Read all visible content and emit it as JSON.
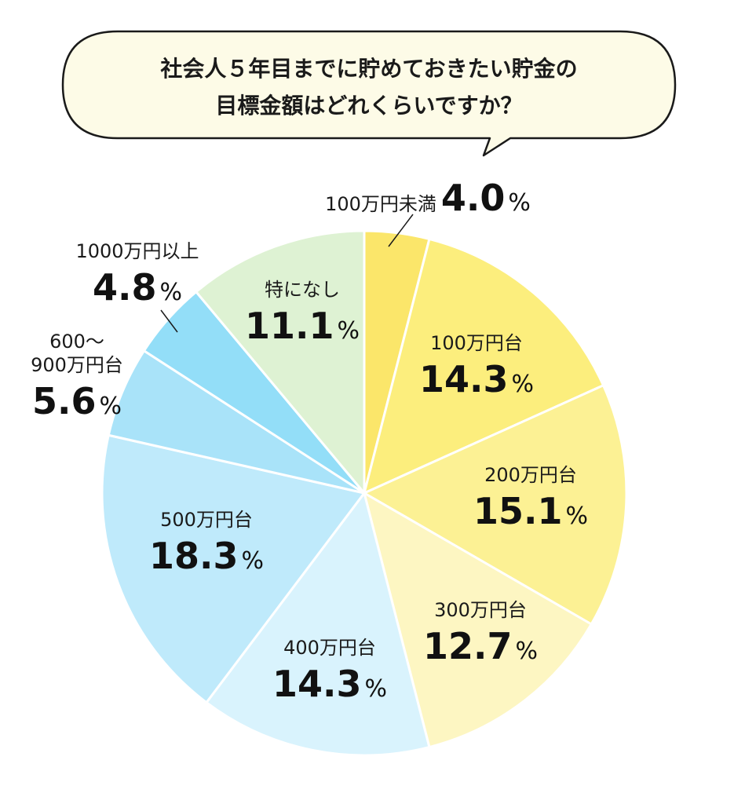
{
  "title_lines": [
    "社会人５年目までに貯めておきたい貯金の",
    "目標金額はどれくらいですか？"
  ],
  "chart_data": {
    "type": "pie",
    "unit": "%",
    "start_angle_deg": 0,
    "direction": "clockwise",
    "slices": [
      {
        "label": "100万円未満",
        "value": 4.0,
        "display": "4.0",
        "color": "#fbe66a"
      },
      {
        "label": "100万円台",
        "value": 14.3,
        "display": "14.3",
        "color": "#fcee7d"
      },
      {
        "label": "200万円台",
        "value": 15.1,
        "display": "15.1",
        "color": "#fcf194"
      },
      {
        "label": "300万円台",
        "value": 12.7,
        "display": "12.7",
        "color": "#fdf6c2"
      },
      {
        "label": "400万円台",
        "value": 14.3,
        "display": "14.3",
        "color": "#d9f3fd"
      },
      {
        "label": "500万円台",
        "value": 18.3,
        "display": "18.3",
        "color": "#bfeafb"
      },
      {
        "label": "600～900万円台",
        "label_lines": [
          "600～",
          "900万円台"
        ],
        "value": 5.6,
        "display": "5.6",
        "color": "#a9e3f9"
      },
      {
        "label": "1000万円以上",
        "value": 4.8,
        "display": "4.8",
        "color": "#93def8"
      },
      {
        "label": "特になし",
        "value": 11.1,
        "display": "11.1",
        "color": "#def2d3"
      }
    ],
    "percent_sign": "%"
  },
  "colors": {
    "bubble_fill": "#fdfbe7",
    "bubble_stroke": "#1a1a1a",
    "slice_border": "#ffffff",
    "text": "#111111"
  }
}
